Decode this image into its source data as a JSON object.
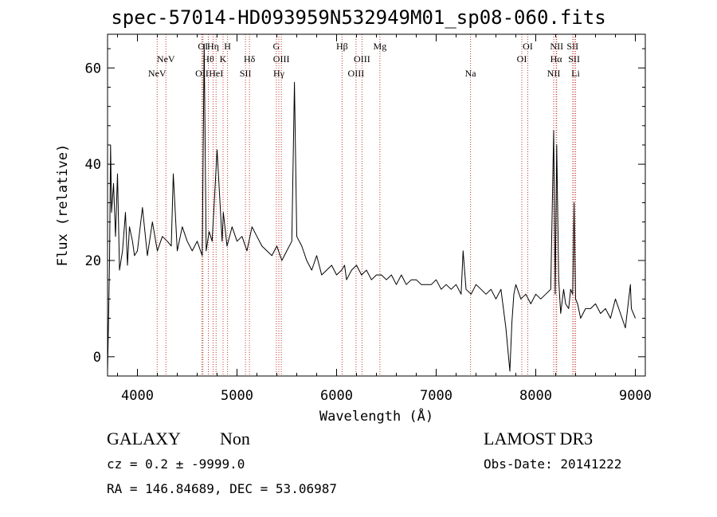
{
  "chart_data": {
    "type": "line",
    "title": "spec-57014-HD093959N532949M01_sp08-060.fits",
    "xlabel": "Wavelength (Å)",
    "ylabel": "Flux (relative)",
    "xlim": [
      3700,
      9100
    ],
    "ylim": [
      -4,
      67
    ],
    "xticks": [
      4000,
      5000,
      6000,
      7000,
      8000,
      9000
    ],
    "yticks": [
      0,
      20,
      40,
      60
    ],
    "line_color": "#000000",
    "marker_color": "#c0392b",
    "spectrum": {
      "name": "flux",
      "x": [
        3700,
        3710,
        3720,
        3730,
        3740,
        3760,
        3780,
        3800,
        3820,
        3850,
        3880,
        3900,
        3920,
        3950,
        3970,
        4000,
        4050,
        4100,
        4150,
        4200,
        4250,
        4300,
        4340,
        4360,
        4400,
        4450,
        4500,
        4550,
        4600,
        4650,
        4670,
        4690,
        4720,
        4750,
        4800,
        4850,
        4862,
        4900,
        4950,
        5000,
        5050,
        5100,
        5150,
        5200,
        5250,
        5300,
        5350,
        5400,
        5450,
        5500,
        5550,
        5577,
        5600,
        5650,
        5700,
        5750,
        5800,
        5850,
        5900,
        5950,
        6000,
        6050,
        6080,
        6100,
        6150,
        6200,
        6250,
        6300,
        6350,
        6400,
        6450,
        6500,
        6550,
        6600,
        6650,
        6700,
        6750,
        6800,
        6850,
        6900,
        6950,
        7000,
        7050,
        7100,
        7150,
        7200,
        7250,
        7270,
        7300,
        7350,
        7400,
        7450,
        7500,
        7550,
        7600,
        7650,
        7700,
        7740,
        7760,
        7780,
        7800,
        7850,
        7900,
        7950,
        8000,
        8050,
        8100,
        8150,
        8180,
        8195,
        8210,
        8230,
        8250,
        8280,
        8300,
        8330,
        8350,
        8370,
        8385,
        8400,
        8420,
        8450,
        8500,
        8550,
        8600,
        8650,
        8700,
        8750,
        8800,
        8850,
        8900,
        8950,
        8960,
        9000
      ],
      "y": [
        -3,
        8,
        20,
        44,
        30,
        36,
        25,
        38,
        18,
        22,
        30,
        19,
        27,
        24,
        21,
        22,
        31,
        21,
        28,
        22,
        25,
        24,
        23,
        38,
        22,
        27,
        24,
        22,
        24,
        21,
        65,
        22,
        26,
        24,
        43,
        24,
        30,
        23,
        27,
        24,
        25,
        22,
        27,
        25,
        23,
        22,
        21,
        23,
        20,
        22,
        24,
        57,
        25,
        23,
        20,
        18,
        21,
        17,
        18,
        19,
        17,
        18,
        19,
        16,
        18,
        19,
        17,
        18,
        16,
        17,
        17,
        16,
        17,
        15,
        17,
        15,
        16,
        16,
        15,
        15,
        15,
        16,
        14,
        15,
        14,
        15,
        13,
        22,
        14,
        13,
        15,
        14,
        13,
        14,
        12,
        14,
        6,
        -3,
        7,
        13,
        15,
        12,
        13,
        11,
        13,
        12,
        13,
        14,
        47,
        13,
        44,
        16,
        9,
        14,
        11,
        10,
        14,
        13,
        32,
        12,
        11,
        8,
        10,
        10,
        11,
        9,
        10,
        8,
        12,
        9,
        6,
        15,
        10,
        8
      ]
    },
    "emission_lines": [
      {
        "x": 4198,
        "label": "NeV",
        "row": 2
      },
      {
        "x": 4286,
        "label": "NeV",
        "row": 1
      },
      {
        "x": 4648,
        "label": "OII",
        "row": 2
      },
      {
        "x": 4658,
        "label": "OI",
        "row": 0
      },
      {
        "x": 4712,
        "label": "Hθ",
        "row": 1
      },
      {
        "x": 4760,
        "label": "Hη",
        "row": 0
      },
      {
        "x": 4790,
        "label": "HeI",
        "row": 2
      },
      {
        "x": 4860,
        "label": "K",
        "row": 1
      },
      {
        "x": 4905,
        "label": "H",
        "row": 0
      },
      {
        "x": 5085,
        "label": "SII",
        "row": 2
      },
      {
        "x": 5125,
        "label": "Hδ",
        "row": 1
      },
      {
        "x": 5395,
        "label": "G",
        "row": 0
      },
      {
        "x": 5420,
        "label": "Hγ",
        "row": 2
      },
      {
        "x": 5445,
        "label": "OIII",
        "row": 1
      },
      {
        "x": 6055,
        "label": "Hβ",
        "row": 0
      },
      {
        "x": 6195,
        "label": "OIII",
        "row": 2
      },
      {
        "x": 6255,
        "label": "OIII",
        "row": 1
      },
      {
        "x": 6435,
        "label": "Mg",
        "row": 0
      },
      {
        "x": 7345,
        "label": "Na",
        "row": 2
      },
      {
        "x": 7860,
        "label": "OI",
        "row": 1
      },
      {
        "x": 7920,
        "label": "OI",
        "row": 0
      },
      {
        "x": 8180,
        "label": "NII",
        "row": 2
      },
      {
        "x": 8205,
        "label": "Hα",
        "row": 1
      },
      {
        "x": 8210,
        "label": "NII",
        "row": 0
      },
      {
        "x": 8370,
        "label": "SII",
        "row": 0
      },
      {
        "x": 8385,
        "label": "SII",
        "row": 1
      },
      {
        "x": 8400,
        "label": "Li",
        "row": 2
      }
    ]
  },
  "info": {
    "class_label": "GALAXY",
    "subclass_label": "Non",
    "survey": "LAMOST DR3",
    "cz_line": "cz = 0.2 ± -9999.0",
    "obs_date": "Obs-Date: 20141222",
    "coords": "RA = 146.84689, DEC =  53.06987"
  }
}
